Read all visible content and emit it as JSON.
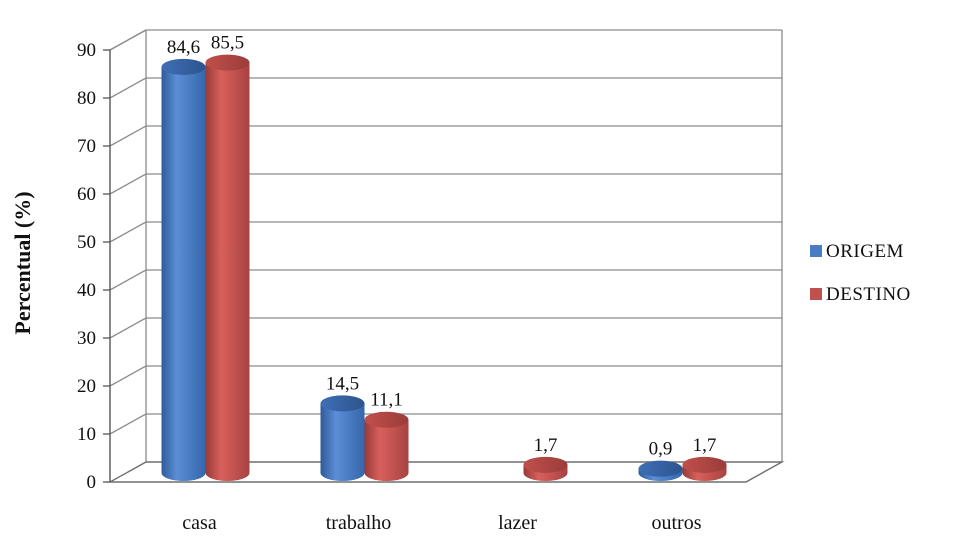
{
  "chart_data": {
    "type": "bar",
    "title": "",
    "xlabel": "",
    "ylabel": "Percentual (%)",
    "ylim": [
      0,
      90
    ],
    "yticks": [
      0,
      10,
      20,
      30,
      40,
      50,
      60,
      70,
      80,
      90
    ],
    "grid": true,
    "legend_position": "right",
    "categories": [
      "casa",
      "trabalho",
      "lazer",
      "outros"
    ],
    "series": [
      {
        "name": "ORIGEM",
        "color": "#4A7EC4",
        "values": [
          84.6,
          14.5,
          null,
          0.9
        ],
        "labels": [
          "84,6",
          "14,5",
          "",
          "0,9"
        ]
      },
      {
        "name": "DESTINO",
        "color": "#C0504D",
        "values": [
          85.5,
          11.1,
          1.7,
          1.7
        ],
        "labels": [
          "85,5",
          "11,1",
          "1,7",
          "1,7"
        ]
      }
    ]
  }
}
